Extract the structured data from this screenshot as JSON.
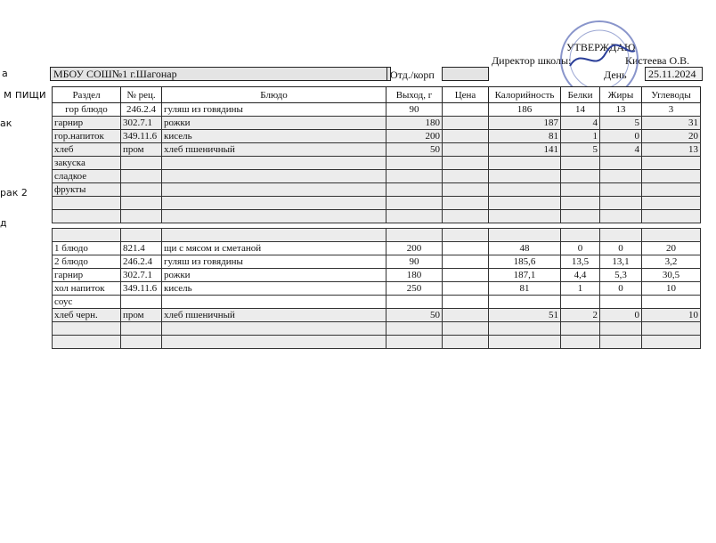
{
  "header": {
    "approve": "УТВЕРЖДАЮ",
    "director_label": "Директор школы:",
    "director_name": "Кистеева О.В.",
    "school_label": "а",
    "school": "МБОУ СОШ№1  г.Шагонар",
    "dept_label": "Отд./корп",
    "day_label": "День",
    "date": "25.11.2024"
  },
  "columns": [
    "м пищи",
    "Раздел",
    "№ рец.",
    "Блюдо",
    "Выход, г",
    "Цена",
    "Калорийность",
    "Белки",
    "Жиры",
    "Углеводы"
  ],
  "meal_labels": {
    "breakfast": "ак",
    "breakfast2": "рак 2",
    "lunch": "д"
  },
  "breakfast": [
    [
      "гор блюдо",
      "246.2.4",
      "гуляш из говядины",
      "90",
      "",
      "186",
      "14",
      "13",
      "3"
    ],
    [
      "гарнир",
      "302.7.1",
      "рожки",
      "180",
      "",
      "187",
      "4",
      "5",
      "31"
    ],
    [
      "гор.напиток",
      "349.11.6",
      "кисель",
      "200",
      "",
      "81",
      "1",
      "0",
      "20"
    ],
    [
      "хлеб",
      "пром",
      "хлеб пшеничный",
      "50",
      "",
      "141",
      "5",
      "4",
      "13"
    ],
    [
      "закуска",
      "",
      "",
      "",
      "",
      "",
      "",
      "",
      ""
    ],
    [
      "сладкое",
      "",
      "",
      "",
      "",
      "",
      "",
      "",
      ""
    ],
    [
      "фрукты",
      "",
      "",
      "",
      "",
      "",
      "",
      "",
      ""
    ],
    [
      "",
      "",
      "",
      "",
      "",
      "",
      "",
      "",
      ""
    ],
    [
      "",
      "",
      "",
      "",
      "",
      "",
      "",
      "",
      ""
    ]
  ],
  "lunch": [
    [
      "",
      "",
      "",
      "",
      "",
      "",
      "",
      "",
      ""
    ],
    [
      "1 блюдо",
      "821.4",
      "щи с мясом и  сметаной",
      "200",
      "",
      "48",
      "0",
      "0",
      "20"
    ],
    [
      "2 блюдо",
      "246.2.4",
      "гуляш из говядины",
      "90",
      "",
      "185,6",
      "13,5",
      "13,1",
      "3,2"
    ],
    [
      "гарнир",
      "302.7.1",
      "рожки",
      "180",
      "",
      "187,1",
      "4,4",
      "5,3",
      "30,5"
    ],
    [
      "хол напиток",
      "349.11.6",
      "кисель",
      "250",
      "",
      "81",
      "1",
      "0",
      "10"
    ],
    [
      "соус",
      "",
      "",
      "",
      "",
      "",
      "",
      "",
      ""
    ],
    [
      "хлеб черн.",
      "пром",
      "хлеб пшеничный",
      "50",
      "",
      "51",
      "2",
      "0",
      "10"
    ],
    [
      "",
      "",
      "",
      "",
      "",
      "",
      "",
      "",
      ""
    ],
    [
      "",
      "",
      "",
      "",
      "",
      "",
      "",
      "",
      ""
    ]
  ],
  "stamp_color": "#3a4fa8"
}
